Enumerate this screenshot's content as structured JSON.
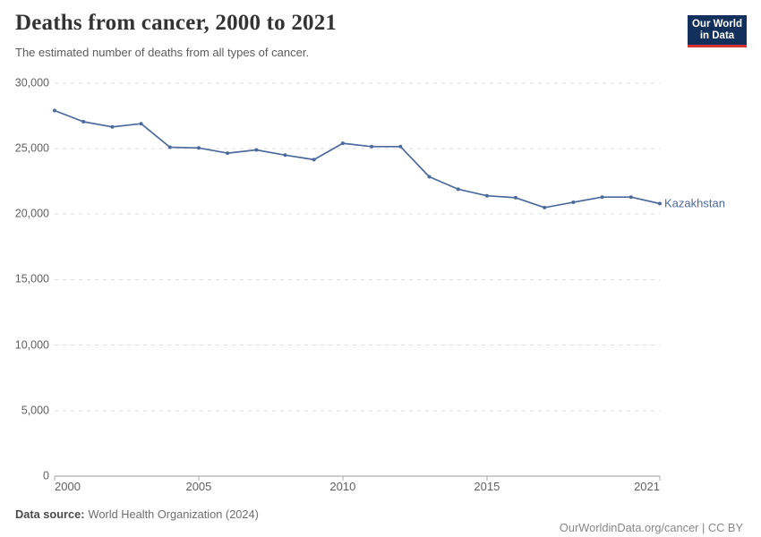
{
  "header": {
    "title": "Deaths from cancer, 2000 to 2021",
    "subtitle": "The estimated number of deaths from all types of cancer.",
    "logo": {
      "line1": "Our World",
      "line2": "in Data"
    }
  },
  "chart_data": {
    "type": "line",
    "title": "Deaths from cancer, 2000 to 2021",
    "subtitle": "The estimated number of deaths from all types of cancer.",
    "xlabel": "",
    "ylabel": "",
    "xlim": [
      2000,
      2021
    ],
    "ylim": [
      0,
      30000
    ],
    "xticks": [
      2000,
      2005,
      2010,
      2015,
      2021
    ],
    "yticks": [
      0,
      5000,
      10000,
      15000,
      20000,
      25000,
      30000
    ],
    "grid": "horizontal-dashed",
    "legend_position": "end-of-line-label",
    "series": [
      {
        "name": "Kazakhstan",
        "color": "#4C6A9C",
        "x": [
          2000,
          2001,
          2002,
          2003,
          2004,
          2005,
          2006,
          2007,
          2008,
          2009,
          2010,
          2011,
          2012,
          2013,
          2014,
          2015,
          2016,
          2017,
          2018,
          2019,
          2020,
          2021
        ],
        "values": [
          27900,
          27050,
          26650,
          26900,
          25100,
          25050,
          24650,
          24900,
          24500,
          24150,
          25400,
          25150,
          25150,
          22850,
          21900,
          21400,
          21250,
          20500,
          20900,
          21300,
          21300,
          20800
        ]
      }
    ]
  },
  "footer": {
    "source_label": "Data source:",
    "source_value": "World Health Organization (2024)",
    "link_text": "OurWorldinData.org/cancer",
    "separator": " | ",
    "license": "CC BY"
  },
  "colors": {
    "line": "#4C6A9C",
    "logo_bg": "#12305b",
    "logo_accent": "#d7332e",
    "gridline": "#dddddd",
    "axis": "#999999",
    "title_text": "#333333",
    "tick_text": "#616161"
  }
}
